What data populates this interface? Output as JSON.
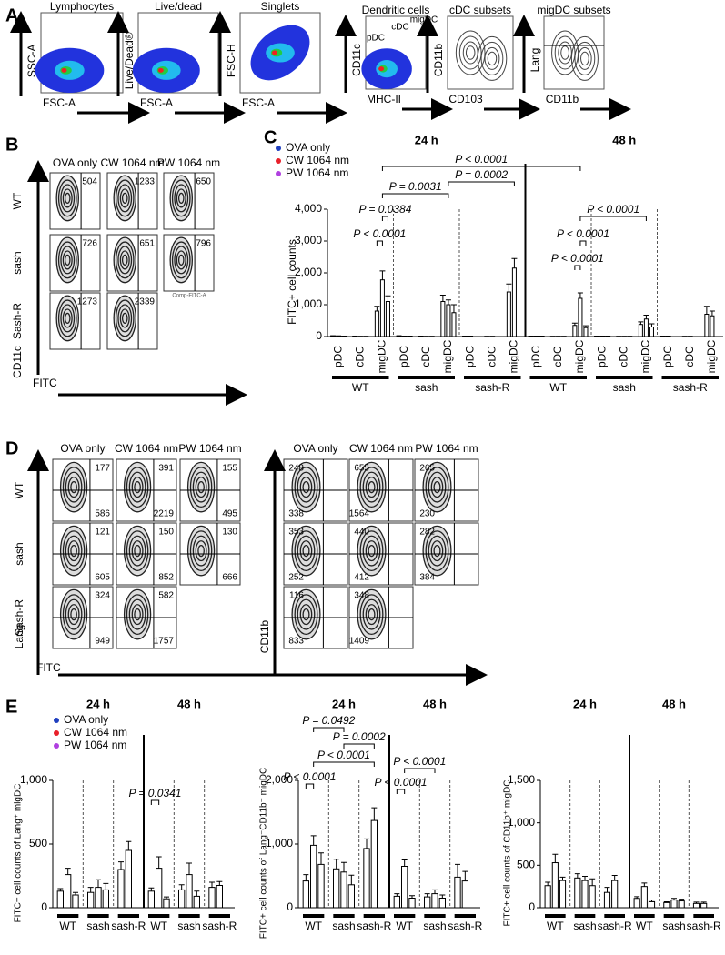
{
  "panel_labels": [
    "A",
    "B",
    "C",
    "D",
    "E"
  ],
  "panel_a": {
    "plots": [
      {
        "title": "Lymphocytes",
        "y_label": "SSC-A",
        "x_label": "FSC-A"
      },
      {
        "title": "Live/dead",
        "y_label": "Live/Dead®",
        "x_label": "FSC-A"
      },
      {
        "title": "Singlets",
        "y_label": "FSC-H",
        "x_label": "FSC-A"
      },
      {
        "title": "Dendritic cells",
        "y_label": "CD11c",
        "x_label": "MHC-II"
      },
      {
        "title": "cDC subsets",
        "y_label": "CD11b",
        "x_label": "CD103"
      },
      {
        "title": "migDC subsets",
        "y_label": "Lang",
        "x_label": "CD11b"
      }
    ],
    "gates": [
      "pDC",
      "cDC",
      "migDC"
    ]
  },
  "panel_b": {
    "columns": [
      "OVA only",
      "CW 1064 nm",
      "PW 1064 nm"
    ],
    "rows": [
      "WT",
      "sash",
      "Sash-R"
    ],
    "y_label": "CD11c",
    "x_label": "FITC",
    "note": "Comp-FITC-A",
    "counts": [
      [
        504,
        1233,
        650
      ],
      [
        726,
        651,
        796
      ],
      [
        1273,
        2339,
        null
      ]
    ]
  },
  "panel_d": {
    "columns": [
      "OVA only",
      "CW 1064 nm",
      "PW 1064 nm"
    ],
    "rows": [
      "WT",
      "sash",
      "Sash-R"
    ],
    "x_label": "FITC",
    "left": {
      "y_label": "Lang",
      "top": [
        [
          177,
          391,
          155
        ],
        [
          121,
          150,
          130
        ],
        [
          324,
          582,
          null
        ]
      ],
      "bottom": [
        [
          586,
          2219,
          495
        ],
        [
          605,
          852,
          666
        ],
        [
          949,
          1757,
          null
        ]
      ]
    },
    "right": {
      "y_label": "CD11b",
      "top": [
        [
          248,
          655,
          265
        ],
        [
          353,
          440,
          282
        ],
        [
          116,
          348,
          null
        ]
      ],
      "bottom": [
        [
          338,
          1564,
          230
        ],
        [
          252,
          412,
          384
        ],
        [
          833,
          1409,
          null
        ]
      ]
    }
  },
  "chart_data": [
    {
      "type": "bar",
      "y_label": "FITC+ cell counts",
      "legend": true,
      "time_labels": [
        "24 h",
        "48 h"
      ],
      "ylim": [
        0,
        4000
      ],
      "yticks": [
        0,
        {
          "value": 1000,
          "label": "1,000"
        },
        {
          "value": 2000,
          "label": "2,000"
        },
        {
          "value": 3000,
          "label": "3,000"
        },
        {
          "value": 4000,
          "label": "4,000"
        }
      ],
      "categories": [
        "pDC",
        "cDC",
        "migDC",
        "pDC",
        "cDC",
        "migDC",
        "pDC",
        "cDC",
        "migDC",
        "pDC",
        "cDC",
        "migDC",
        "pDC",
        "cDC",
        "migDC",
        "pDC",
        "cDC",
        "migDC"
      ],
      "groups": [
        "WT",
        "sash",
        "sash-R",
        "WT",
        "sash",
        "sash-R"
      ],
      "series": [
        {
          "name": "OVA only",
          "color": "#1f3fbf",
          "values": [
            20,
            10,
            800,
            20,
            10,
            1100,
            10,
            5,
            1400,
            10,
            5,
            350,
            10,
            5,
            380,
            10,
            5,
            700
          ],
          "errors": [
            5,
            3,
            150,
            5,
            3,
            200,
            3,
            2,
            250,
            3,
            2,
            70,
            3,
            2,
            80,
            3,
            2,
            250
          ]
        },
        {
          "name": "CW 1064 nm",
          "color": "#e8202a",
          "values": [
            15,
            5,
            1780,
            10,
            5,
            1000,
            10,
            5,
            2150,
            10,
            5,
            1200,
            10,
            5,
            550,
            10,
            5,
            650
          ],
          "errors": [
            5,
            2,
            280,
            3,
            2,
            150,
            3,
            2,
            300,
            3,
            2,
            170,
            3,
            2,
            120,
            3,
            2,
            150
          ]
        },
        {
          "name": "PW 1064 nm",
          "color": "#b040e0",
          "values": [
            10,
            5,
            1100,
            10,
            5,
            750,
            null,
            null,
            null,
            10,
            5,
            280,
            10,
            5,
            300,
            null,
            null,
            null
          ],
          "errors": [
            3,
            2,
            180,
            3,
            2,
            250,
            null,
            null,
            null,
            3,
            2,
            60,
            3,
            2,
            100,
            null,
            null,
            null
          ]
        }
      ],
      "annotations": [
        "P < 0.0001",
        "P = 0.0002",
        "P = 0.0031",
        "P = 0.0384",
        "P < 0.0001",
        "P < 0.0001",
        "P < 0.0001",
        "P < 0.0001"
      ]
    },
    {
      "type": "bar",
      "y_label": "FITC+ cell counts of Lang⁺ migDC",
      "legend": true,
      "time_labels": [
        "24 h",
        "48 h"
      ],
      "ylim": [
        0,
        1000
      ],
      "yticks": [
        0,
        500,
        {
          "value": 1000,
          "label": "1,000"
        }
      ],
      "categories": [
        "WT",
        "sash",
        "sash-R",
        "WT",
        "sash",
        "sash-R"
      ],
      "series": [
        {
          "name": "OVA only",
          "color": "#1f3fbf",
          "values": [
            130,
            120,
            300,
            130,
            140,
            160
          ],
          "errors": [
            20,
            40,
            60,
            25,
            40,
            40
          ]
        },
        {
          "name": "CW 1064 nm",
          "color": "#e8202a",
          "values": [
            260,
            160,
            450,
            310,
            260,
            175
          ],
          "errors": [
            50,
            60,
            70,
            90,
            90,
            30
          ]
        },
        {
          "name": "PW 1064 nm",
          "color": "#b040e0",
          "values": [
            100,
            140,
            null,
            70,
            90,
            null
          ],
          "errors": [
            20,
            50,
            null,
            15,
            40,
            null
          ]
        }
      ],
      "annotations": [
        "P = 0.0341"
      ]
    },
    {
      "type": "bar",
      "y_label": "FITC+ cell counts of Lang⁻CD11b⁻ migDC",
      "legend": false,
      "time_labels": [
        "24 h",
        "48 h"
      ],
      "ylim": [
        0,
        2000
      ],
      "yticks": [
        0,
        {
          "value": 1000,
          "label": "1,000"
        },
        {
          "value": 2000,
          "label": "2,000"
        }
      ],
      "categories": [
        "WT",
        "sash",
        "sash-R",
        "WT",
        "sash",
        "sash-R"
      ],
      "series": [
        {
          "color": "#1f3fbf",
          "values": [
            420,
            610,
            930,
            180,
            170,
            480
          ],
          "errors": [
            100,
            150,
            150,
            40,
            50,
            200
          ]
        },
        {
          "color": "#e8202a",
          "values": [
            980,
            560,
            1370,
            650,
            220,
            420
          ],
          "errors": [
            150,
            150,
            200,
            100,
            60,
            150
          ]
        },
        {
          "color": "#b040e0",
          "values": [
            680,
            360,
            null,
            150,
            150,
            null
          ],
          "errors": [
            180,
            150,
            null,
            40,
            50,
            null
          ]
        }
      ],
      "annotations": [
        "P = 0.0492",
        "P = 0.0002",
        "P < 0.0001",
        "P < 0.0001",
        "P < 0.0001",
        "P < 0.0001"
      ]
    },
    {
      "type": "bar",
      "y_label": "FITC+ cell counts of CD11b⁺ migDC",
      "legend": false,
      "time_labels": [
        "24 h",
        "48 h"
      ],
      "ylim": [
        0,
        1500
      ],
      "yticks": [
        0,
        500,
        {
          "value": 1000,
          "label": "1,000"
        },
        {
          "value": 1500,
          "label": "1,500"
        }
      ],
      "categories": [
        "WT",
        "sash",
        "sash-R",
        "WT",
        "sash",
        "sash-R"
      ],
      "series": [
        {
          "color": "#1f3fbf",
          "values": [
            260,
            350,
            180,
            110,
            60,
            50
          ],
          "errors": [
            40,
            50,
            60,
            20,
            10,
            15
          ]
        },
        {
          "color": "#e8202a",
          "values": [
            530,
            320,
            320,
            250,
            90,
            50
          ],
          "errors": [
            100,
            50,
            60,
            40,
            20,
            15
          ]
        },
        {
          "color": "#b040e0",
          "values": [
            320,
            260,
            null,
            70,
            80,
            null
          ],
          "errors": [
            40,
            80,
            null,
            20,
            20,
            null
          ]
        }
      ],
      "annotations": []
    }
  ]
}
